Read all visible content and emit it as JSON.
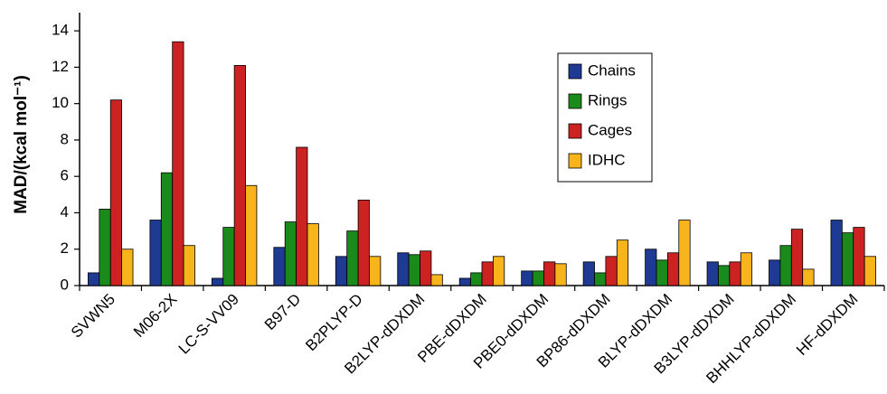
{
  "chart_data": {
    "type": "bar",
    "ylabel": "MAD/(kcal mol⁻¹)",
    "ylim": [
      0,
      15
    ],
    "yticks": [
      0,
      2,
      4,
      6,
      8,
      10,
      12,
      14
    ],
    "grid": false,
    "legend_position": "top-right",
    "categories": [
      "SVWN5",
      "M06-2X",
      "LC-S-VV09",
      "B97-D",
      "B2PLYP-D",
      "B2LYP-dDXDM",
      "PBE-dDXDM",
      "PBE0-dDXDM",
      "BP86-dDXDM",
      "BLYP-dDXDM",
      "B3LYP-dDXDM",
      "BHHLYP-dDXDM",
      "HF-dDXDM"
    ],
    "series": [
      {
        "name": "Chains",
        "color": "#1f3a93",
        "values": [
          0.7,
          3.6,
          0.4,
          2.1,
          1.6,
          1.8,
          0.4,
          0.8,
          1.3,
          2.0,
          1.3,
          1.4,
          3.6
        ]
      },
      {
        "name": "Rings",
        "color": "#1a8a1a",
        "values": [
          4.2,
          6.2,
          3.2,
          3.5,
          3.0,
          1.7,
          0.7,
          0.8,
          0.7,
          1.4,
          1.1,
          2.2,
          2.9
        ]
      },
      {
        "name": "Cages",
        "color": "#cc2222",
        "values": [
          10.2,
          13.4,
          12.1,
          7.6,
          4.7,
          1.9,
          1.3,
          1.3,
          1.6,
          1.8,
          1.3,
          3.1,
          3.2
        ]
      },
      {
        "name": "IDHC",
        "color": "#f7b51b",
        "values": [
          2.0,
          2.2,
          5.5,
          3.4,
          1.6,
          0.6,
          1.6,
          1.2,
          2.5,
          3.6,
          1.8,
          0.9,
          1.6
        ]
      }
    ]
  }
}
